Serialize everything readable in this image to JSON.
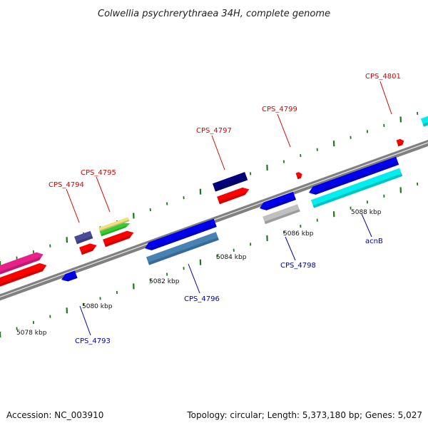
{
  "title": "Colwellia psychrerythraea 34H, complete genome",
  "footer": {
    "accession": "Accession: NC_003910",
    "stats": "Topology: circular; Length: 5,373,180 bp; Genes: 5,027"
  },
  "scale_labels": [
    "5078 kbp",
    "5080 kbp",
    "5082 kbp",
    "5084 kbp",
    "5086 kbp",
    "5088 kbp"
  ],
  "colors": {
    "backbone": "#808080",
    "tick": "#1a7a1a",
    "forward_label": "#dd0000",
    "reverse_label": "#0000aa"
  },
  "gene_labels": {
    "forward": [
      "CPS_4794",
      "CPS_4795",
      "CPS_4797",
      "CPS_4799",
      "CPS_4801"
    ],
    "reverse": [
      "CPS_4793",
      "CPS_4796",
      "CPS_4798",
      "acnB"
    ]
  }
}
